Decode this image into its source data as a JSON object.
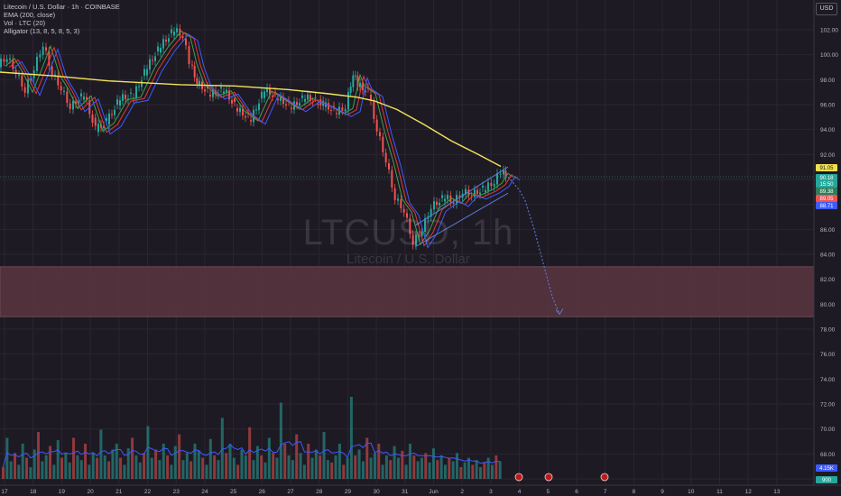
{
  "header": {
    "symbol_line": "Litecoin / U.S. Dollar · 1h · COINBASE",
    "ema_line": "EMA (200, close)",
    "vol_line": "Vol · LTC (20)",
    "alligator_line": "Alligator (13, 8, 5, 8, 5, 3)"
  },
  "watermark": {
    "ticker": "LTCUSD, 1h",
    "name": "Litecoin / U.S. Dollar"
  },
  "axis": {
    "currency": "USD",
    "price_ticks": [
      "102.00",
      "100.00",
      "98.00",
      "96.00",
      "94.00",
      "92.00",
      "90.00",
      "88.00",
      "86.00",
      "84.00",
      "82.00",
      "80.00",
      "78.00",
      "76.00",
      "74.00",
      "72.00",
      "70.00",
      "68.00",
      "66.00"
    ],
    "time_ticks": [
      "17",
      "18",
      "19",
      "20",
      "21",
      "22",
      "23",
      "24",
      "25",
      "26",
      "27",
      "28",
      "29",
      "30",
      "31",
      "Jun",
      "2",
      "3",
      "4",
      "5",
      "6",
      "7",
      "8",
      "9",
      "10",
      "11",
      "12",
      "13"
    ]
  },
  "price_tags": [
    {
      "label": "91.05",
      "bg": "#f0e050",
      "fg": "#1e1a24"
    },
    {
      "label": "90.18",
      "bg": "#26a69a",
      "fg": "#ffffff"
    },
    {
      "label": "15:50",
      "bg": "#26a69a",
      "fg": "#ffffff"
    },
    {
      "label": "89.38",
      "bg": "#2e7d5a",
      "fg": "#ffffff"
    },
    {
      "label": "89.05",
      "bg": "#ef5350",
      "fg": "#ffffff"
    },
    {
      "label": "88.71",
      "bg": "#3d5afe",
      "fg": "#ffffff"
    },
    {
      "label": "4.15K",
      "bg": "#3d5afe",
      "fg": "#ffffff"
    },
    {
      "label": "900",
      "bg": "#26a69a",
      "fg": "#ffffff"
    }
  ],
  "colors": {
    "background": "#1e1a24",
    "up": "#26a69a",
    "down": "#ef5350",
    "ema": "#f3e35a",
    "jaw": "#3d5afe",
    "teeth": "#e53935",
    "lips": "#43a047",
    "zone": "#5a3640",
    "projection": "#5b7bd6"
  },
  "zone": {
    "top": 83.0,
    "bottom": 79.0
  },
  "ema_path": [
    [
      0,
      98.6
    ],
    [
      60,
      98.3
    ],
    [
      120,
      97.9
    ],
    [
      200,
      97.6
    ],
    [
      260,
      97.5
    ],
    [
      320,
      97.2
    ],
    [
      360,
      96.9
    ],
    [
      395,
      96.6
    ],
    [
      415,
      96.3
    ],
    [
      440,
      95.6
    ],
    [
      470,
      94.4
    ],
    [
      500,
      93.1
    ],
    [
      530,
      92.0
    ],
    [
      555,
      91.05
    ]
  ],
  "price_path": [
    [
      0,
      99.2
    ],
    [
      10,
      99.8
    ],
    [
      20,
      98.6
    ],
    [
      30,
      97.1
    ],
    [
      40,
      98.9
    ],
    [
      50,
      100.8
    ],
    [
      60,
      98.5
    ],
    [
      70,
      97.3
    ],
    [
      80,
      95.8
    ],
    [
      95,
      96.8
    ],
    [
      108,
      94.0
    ],
    [
      120,
      94.6
    ],
    [
      135,
      96.5
    ],
    [
      150,
      96.7
    ],
    [
      165,
      99.0
    ],
    [
      180,
      100.7
    ],
    [
      195,
      102.0
    ],
    [
      205,
      101.5
    ],
    [
      212,
      99.4
    ],
    [
      220,
      97.8
    ],
    [
      235,
      96.8
    ],
    [
      250,
      97.2
    ],
    [
      265,
      95.6
    ],
    [
      280,
      94.8
    ],
    [
      295,
      97.2
    ],
    [
      310,
      96.5
    ],
    [
      325,
      95.8
    ],
    [
      340,
      96.6
    ],
    [
      360,
      96.0
    ],
    [
      375,
      95.4
    ],
    [
      385,
      95.8
    ],
    [
      393,
      98.5
    ],
    [
      398,
      97.6
    ],
    [
      410,
      97.0
    ],
    [
      420,
      94.0
    ],
    [
      430,
      91.5
    ],
    [
      440,
      88.5
    ],
    [
      450,
      87.5
    ],
    [
      460,
      84.9
    ],
    [
      470,
      86.0
    ],
    [
      480,
      87.8
    ],
    [
      495,
      88.6
    ],
    [
      505,
      88.2
    ],
    [
      515,
      89.0
    ],
    [
      525,
      88.8
    ],
    [
      540,
      89.3
    ],
    [
      550,
      89.8
    ],
    [
      557,
      90.6
    ],
    [
      562,
      90.3
    ]
  ],
  "channel": {
    "upper": [
      [
        460,
        86.3
      ],
      [
        563,
        91.0
      ]
    ],
    "lower": [
      [
        460,
        84.6
      ],
      [
        563,
        88.9
      ]
    ]
  },
  "projection": [
    [
      563,
      90.2
    ],
    [
      575,
      89.2
    ],
    [
      582,
      88.3
    ],
    [
      592,
      86.0
    ],
    [
      602,
      83.3
    ],
    [
      612,
      80.6
    ],
    [
      620,
      79.2
    ]
  ],
  "volume_scale_max": 1.0,
  "volume_bars": [
    0.1,
    0.35,
    0.15,
    0.22,
    0.12,
    0.3,
    0.18,
    0.1,
    0.25,
    0.4,
    0.15,
    0.2,
    0.28,
    0.12,
    0.33,
    0.18,
    0.22,
    0.14,
    0.35,
    0.2,
    0.16,
    0.3,
    0.12,
    0.22,
    0.18,
    0.42,
    0.2,
    0.15,
    0.25,
    0.3,
    0.18,
    0.12,
    0.26,
    0.35,
    0.2,
    0.14,
    0.22,
    0.45,
    0.18,
    0.25,
    0.16,
    0.3,
    0.2,
    0.12,
    0.28,
    0.38,
    0.16,
    0.22,
    0.15,
    0.3,
    0.24,
    0.18,
    0.12,
    0.34,
    0.2,
    0.16,
    0.52,
    0.22,
    0.3,
    0.18,
    0.12,
    0.25,
    0.2,
    0.44,
    0.16,
    0.28,
    0.2,
    0.14,
    0.35,
    0.22,
    0.18,
    0.65,
    0.3,
    0.2,
    0.16,
    0.38,
    0.22,
    0.12,
    0.3,
    0.18,
    0.25,
    0.2,
    0.4,
    0.16,
    0.14,
    0.2,
    0.3,
    0.12,
    0.18,
    0.7,
    0.2,
    0.25,
    0.15,
    0.35,
    0.18,
    0.22,
    0.3,
    0.12,
    0.2,
    0.16,
    0.28,
    0.18,
    0.24,
    0.12,
    0.3,
    0.2,
    0.15,
    0.18,
    0.22,
    0.14,
    0.26,
    0.16,
    0.2,
    0.12,
    0.18,
    0.15,
    0.22,
    0.1,
    0.14,
    0.18,
    0.12,
    0.16,
    0.1,
    0.14,
    0.18,
    0.12,
    0.2,
    0.15
  ]
}
